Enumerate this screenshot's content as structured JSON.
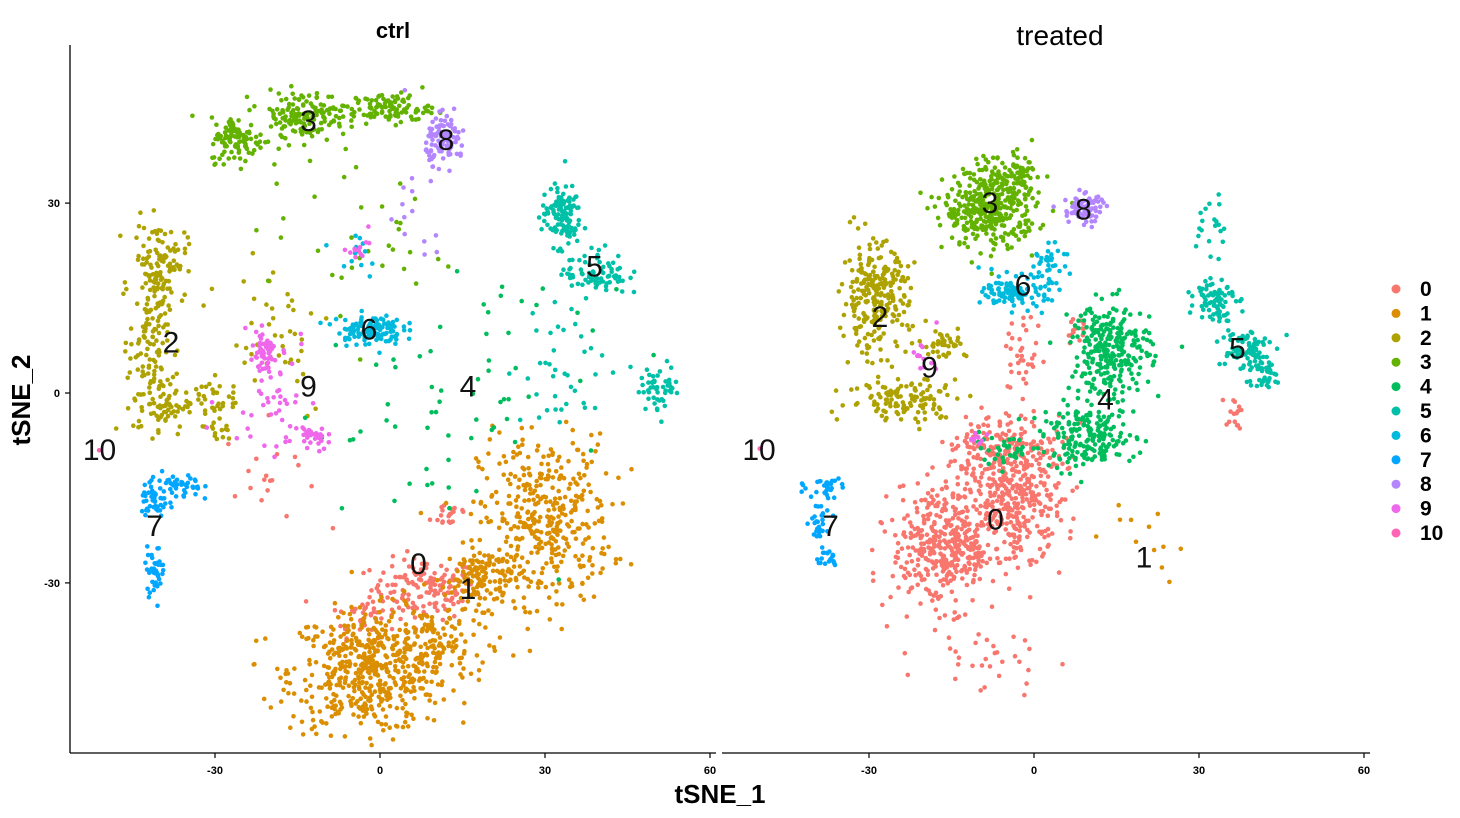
{
  "chart_data": {
    "type": "scatter",
    "xlabel": "tSNE_1",
    "ylabel": "tSNE_2",
    "xlim": [
      -57,
      61
    ],
    "ylim": [
      -57,
      56
    ],
    "x_ticks": [
      -30,
      0,
      30,
      60
    ],
    "y_ticks": [
      -30,
      0,
      30
    ],
    "x_tick_labels": [
      "-30",
      "0",
      "30",
      "60"
    ],
    "y_tick_labels": [
      "-30",
      "0",
      "30"
    ],
    "grid": false,
    "legend_position": "right",
    "legend": [
      {
        "name": "0",
        "color": "#F8766D"
      },
      {
        "name": "1",
        "color": "#DB8E00"
      },
      {
        "name": "2",
        "color": "#AEA200"
      },
      {
        "name": "3",
        "color": "#64B200"
      },
      {
        "name": "4",
        "color": "#00BD5C"
      },
      {
        "name": "5",
        "color": "#00C1A7"
      },
      {
        "name": "6",
        "color": "#00BADE"
      },
      {
        "name": "7",
        "color": "#00A6FF"
      },
      {
        "name": "8",
        "color": "#B385FF"
      },
      {
        "name": "9",
        "color": "#EF67EB"
      },
      {
        "name": "10",
        "color": "#FF63B6"
      }
    ],
    "panels": [
      {
        "title": "ctrl",
        "clusters": [
          {
            "id": 0,
            "label_pos": [
              7,
              -27
            ],
            "blobs": [
              [
                8,
                -31,
                8,
                4,
                140
              ],
              [
                13,
                -19,
                3,
                2,
                20
              ],
              [
                -3,
                -35,
                5,
                3,
                35
              ],
              [
                -20,
                -13,
                7,
                7,
                18
              ]
            ]
          },
          {
            "id": 1,
            "label_pos": [
              16,
              -31
            ],
            "blobs": [
              [
                -2,
                -44,
                12,
                8,
                520
              ],
              [
                30,
                -20,
                10,
                11,
                380
              ],
              [
                19,
                -29,
                6,
                4,
                140
              ],
              [
                10,
                -40,
                8,
                6,
                120
              ]
            ]
          },
          {
            "id": 2,
            "label_pos": [
              -38,
              8
            ],
            "blobs": [
              [
                -40,
                21,
                4,
                5,
                110
              ],
              [
                -42,
                8,
                3,
                8,
                100
              ],
              [
                -40,
                -2,
                4,
                4,
                70
              ],
              [
                -31,
                -1,
                4,
                3,
                40
              ],
              [
                -29,
                -6,
                2,
                2,
                12
              ],
              [
                -20,
                10,
                10,
                12,
                45
              ]
            ]
          },
          {
            "id": 3,
            "label_pos": [
              -13,
              43
            ],
            "blobs": [
              [
                -26,
                40,
                4,
                3,
                100
              ],
              [
                -14,
                44,
                7,
                3,
                150
              ],
              [
                2,
                45,
                6,
                2,
                100
              ],
              [
                -5,
                25,
                14,
                13,
                40
              ]
            ]
          },
          {
            "id": 4,
            "label_pos": [
              16,
              1
            ],
            "blobs": [
              [
                8,
                -5,
                18,
                16,
                45
              ],
              [
                22,
                12,
                14,
                10,
                20
              ]
            ]
          },
          {
            "id": 5,
            "label_pos": [
              39,
              20
            ],
            "blobs": [
              [
                33,
                28,
                3,
                4,
                120
              ],
              [
                39,
                19,
                5,
                3,
                80
              ],
              [
                51,
                1,
                3,
                3,
                50
              ],
              [
                35,
                4,
                10,
                8,
                40
              ]
            ]
          },
          {
            "id": 6,
            "label_pos": [
              -2,
              10
            ],
            "blobs": [
              [
                -2,
                10,
                5,
                2,
                120
              ],
              [
                -4,
                22,
                4,
                4,
                12
              ]
            ]
          },
          {
            "id": 7,
            "label_pos": [
              -41,
              -21
            ],
            "blobs": [
              [
                -41,
                -17,
                2,
                3,
                45
              ],
              [
                -41,
                -28,
                1.5,
                3,
                40
              ],
              [
                -36,
                -15,
                3,
                2,
                40
              ]
            ]
          },
          {
            "id": 8,
            "label_pos": [
              12,
              40
            ],
            "blobs": [
              [
                12,
                40,
                3,
                3,
                100
              ],
              [
                6,
                28,
                6,
                10,
                15
              ]
            ]
          },
          {
            "id": 9,
            "label_pos": [
              -13,
              1
            ],
            "blobs": [
              [
                -21,
                6,
                2,
                3,
                50
              ],
              [
                -12,
                -7,
                2,
                2,
                30
              ],
              [
                -20,
                0,
                7,
                8,
                50
              ],
              [
                -4,
                24,
                3,
                3,
                12
              ]
            ]
          },
          {
            "id": 10,
            "label_pos": [
              -51,
              -9
            ],
            "blobs": [
              [
                -51,
                -9,
                0.3,
                0.3,
                1
              ]
            ]
          }
        ]
      },
      {
        "title": "treated",
        "clusters": [
          {
            "id": 0,
            "label_pos": [
              -7,
              -20
            ],
            "blobs": [
              [
                -16,
                -24,
                8,
                8,
                430
              ],
              [
                -3,
                -17,
                7,
                7,
                300
              ],
              [
                -5,
                -8,
                9,
                4,
                150
              ],
              [
                -2,
                5,
                3,
                6,
                35
              ],
              [
                -9,
                -42,
                10,
                5,
                30
              ],
              [
                8,
                10,
                2,
                2,
                15
              ],
              [
                36,
                -3,
                1.5,
                2,
                15
              ]
            ]
          },
          {
            "id": 1,
            "label_pos": [
              20,
              -26
            ],
            "blobs": [
              [
                20,
                -22,
                8,
                6,
                12
              ]
            ]
          },
          {
            "id": 2,
            "label_pos": [
              -28,
              12
            ],
            "blobs": [
              [
                -29,
                15,
                5,
                7,
                260
              ],
              [
                -23,
                -1,
                9,
                3,
                120
              ],
              [
                -17,
                8,
                4,
                2,
                40
              ]
            ]
          },
          {
            "id": 3,
            "label_pos": [
              -8,
              30
            ],
            "blobs": [
              [
                -8,
                29,
                7,
                5,
                360
              ],
              [
                -4,
                34,
                5,
                3,
                80
              ]
            ]
          },
          {
            "id": 4,
            "label_pos": [
              13,
              -1
            ],
            "blobs": [
              [
                14,
                7,
                6,
                6,
                280
              ],
              [
                10,
                -7,
                7,
                4,
                200
              ],
              [
                -6,
                -9,
                6,
                2,
                35
              ]
            ]
          },
          {
            "id": 5,
            "label_pos": [
              37,
              7
            ],
            "blobs": [
              [
                33,
                15,
                3,
                3,
                80
              ],
              [
                38,
                7,
                4,
                3,
                80
              ],
              [
                42,
                3,
                3,
                2,
                40
              ],
              [
                32,
                25,
                2,
                6,
                20
              ]
            ]
          },
          {
            "id": 6,
            "label_pos": [
              -2,
              17
            ],
            "blobs": [
              [
                -3,
                16,
                5,
                2,
                120
              ],
              [
                3,
                21,
                3,
                2,
                30
              ]
            ]
          },
          {
            "id": 7,
            "label_pos": [
              -37,
              -21
            ],
            "blobs": [
              [
                -38,
                -15,
                3,
                2,
                30
              ],
              [
                -39,
                -21,
                1.5,
                3,
                25
              ],
              [
                -38,
                -26,
                2,
                1.5,
                20
              ]
            ]
          },
          {
            "id": 8,
            "label_pos": [
              9,
              29
            ],
            "blobs": [
              [
                9,
                29,
                3,
                2,
                80
              ]
            ]
          },
          {
            "id": 9,
            "label_pos": [
              -19,
              4
            ],
            "blobs": [
              [
                -20,
                6,
                2,
                2,
                12
              ],
              [
                -10,
                -7,
                2,
                1,
                10
              ]
            ]
          },
          {
            "id": 10,
            "label_pos": [
              -50,
              -9
            ],
            "blobs": [
              [
                -50,
                -9,
                0.3,
                0.3,
                1
              ]
            ]
          }
        ]
      }
    ]
  }
}
